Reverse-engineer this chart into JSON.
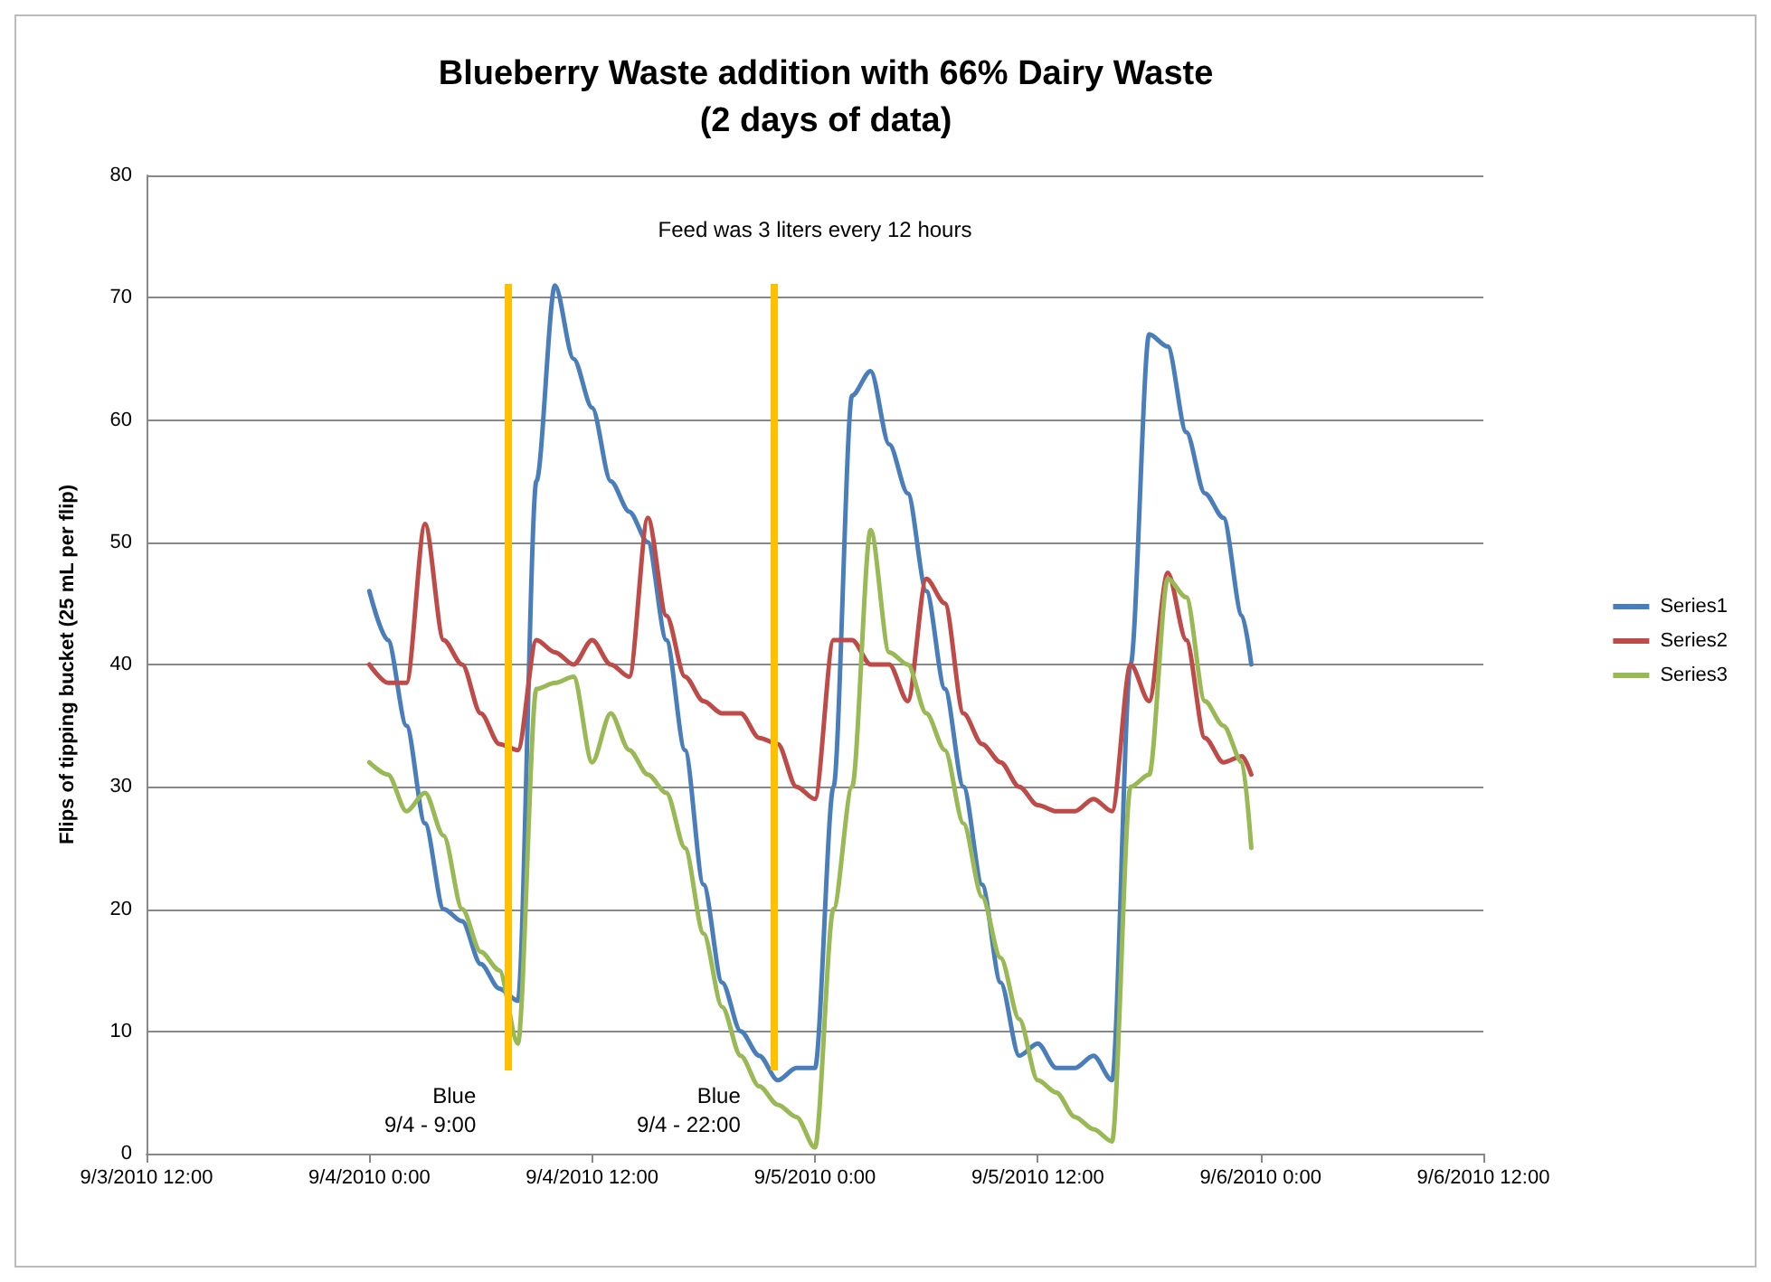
{
  "chart_data": {
    "type": "line",
    "title": "Blueberry Waste addition with 66% Dairy Waste\n(2 days of data)",
    "ylabel": "Flips of tipping bucket (25 mL per flip)",
    "annotations": [
      "Feed was 3 liters every 12 hours"
    ],
    "x": [
      "2010-09-04T00:00",
      "2010-09-04T01:00",
      "2010-09-04T02:00",
      "2010-09-04T03:00",
      "2010-09-04T04:00",
      "2010-09-04T05:00",
      "2010-09-04T06:00",
      "2010-09-04T07:00",
      "2010-09-04T08:00",
      "2010-09-04T09:00",
      "2010-09-04T10:00",
      "2010-09-04T11:00",
      "2010-09-04T12:00",
      "2010-09-04T13:00",
      "2010-09-04T14:00",
      "2010-09-04T15:00",
      "2010-09-04T16:00",
      "2010-09-04T17:00",
      "2010-09-04T18:00",
      "2010-09-04T19:00",
      "2010-09-04T20:00",
      "2010-09-04T21:00",
      "2010-09-04T22:00",
      "2010-09-04T23:00",
      "2010-09-05T00:00",
      "2010-09-05T01:00",
      "2010-09-05T02:00",
      "2010-09-05T03:00",
      "2010-09-05T04:00",
      "2010-09-05T05:00",
      "2010-09-05T06:00",
      "2010-09-05T07:00",
      "2010-09-05T08:00",
      "2010-09-05T09:00",
      "2010-09-05T10:00",
      "2010-09-05T11:00",
      "2010-09-05T12:00",
      "2010-09-05T13:00",
      "2010-09-05T14:00",
      "2010-09-05T15:00",
      "2010-09-05T16:00",
      "2010-09-05T17:00",
      "2010-09-05T18:00",
      "2010-09-05T19:00",
      "2010-09-05T20:00",
      "2010-09-05T21:00",
      "2010-09-05T22:00",
      "2010-09-05T23:00",
      "2010-09-05T23:30"
    ],
    "series": [
      {
        "name": "Series1",
        "color": "#4a7ebb",
        "values": [
          46,
          42,
          35,
          27,
          20,
          19,
          15.5,
          13.5,
          12.5,
          55,
          71,
          65,
          61,
          55,
          52.5,
          50,
          42,
          33,
          22,
          14,
          10,
          8,
          6,
          7,
          7,
          30,
          62,
          64,
          58,
          54,
          46,
          38,
          30,
          22,
          14,
          8,
          9,
          7,
          7,
          8,
          6,
          40,
          67,
          66,
          59,
          54,
          52,
          44,
          40
        ]
      },
      {
        "name": "Series2",
        "color": "#be4b48",
        "values": [
          40,
          38.5,
          38.5,
          51.5,
          42,
          40,
          36,
          33.5,
          33,
          42,
          41,
          40,
          42,
          40,
          39,
          52,
          44,
          39,
          37,
          36,
          36,
          34,
          33.5,
          30,
          29,
          42,
          42,
          40,
          40,
          37,
          47,
          45,
          36,
          33.5,
          32,
          30,
          28.5,
          28,
          28,
          29,
          28,
          40,
          37,
          47.5,
          42,
          34,
          32,
          32.5,
          31
        ]
      },
      {
        "name": "Series3",
        "color": "#98b954",
        "values": [
          32,
          31,
          28,
          29.5,
          26,
          20,
          16.5,
          15,
          9,
          38,
          38.5,
          39,
          32,
          36,
          33,
          31,
          29.5,
          25,
          18,
          12,
          8,
          5.5,
          4,
          3,
          0.5,
          20,
          30,
          51,
          41,
          40,
          36,
          33,
          27,
          21,
          16,
          11,
          6,
          5,
          3,
          2,
          1,
          30,
          31,
          47,
          45.5,
          37,
          35,
          32,
          25
        ]
      }
    ],
    "ref_lines": [
      {
        "axis": "x",
        "value": "2010-09-04T07:30",
        "label": "Blue\n9/4 - 9:00",
        "color": "#ffc000"
      },
      {
        "axis": "x",
        "value": "2010-09-04T21:45",
        "label": "Blue\n9/4 - 22:00",
        "color": "#ffc000"
      }
    ],
    "xlim": [
      "2010-09-03T12:00",
      "2010-09-06T12:00"
    ],
    "xticks": [
      {
        "value": "2010-09-03T12:00",
        "label": "9/3/2010 12:00"
      },
      {
        "value": "2010-09-04T00:00",
        "label": "9/4/2010 0:00"
      },
      {
        "value": "2010-09-04T12:00",
        "label": "9/4/2010 12:00"
      },
      {
        "value": "2010-09-05T00:00",
        "label": "9/5/2010 0:00"
      },
      {
        "value": "2010-09-05T12:00",
        "label": "9/5/2010 12:00"
      },
      {
        "value": "2010-09-06T00:00",
        "label": "9/6/2010 0:00"
      },
      {
        "value": "2010-09-06T12:00",
        "label": "9/6/2010 12:00"
      }
    ],
    "ylim": [
      0,
      80
    ],
    "yticks": [
      0,
      10,
      20,
      30,
      40,
      50,
      60,
      70,
      80
    ],
    "grid": "y",
    "legend": "right",
    "marker": "none",
    "line_style": "solid"
  }
}
